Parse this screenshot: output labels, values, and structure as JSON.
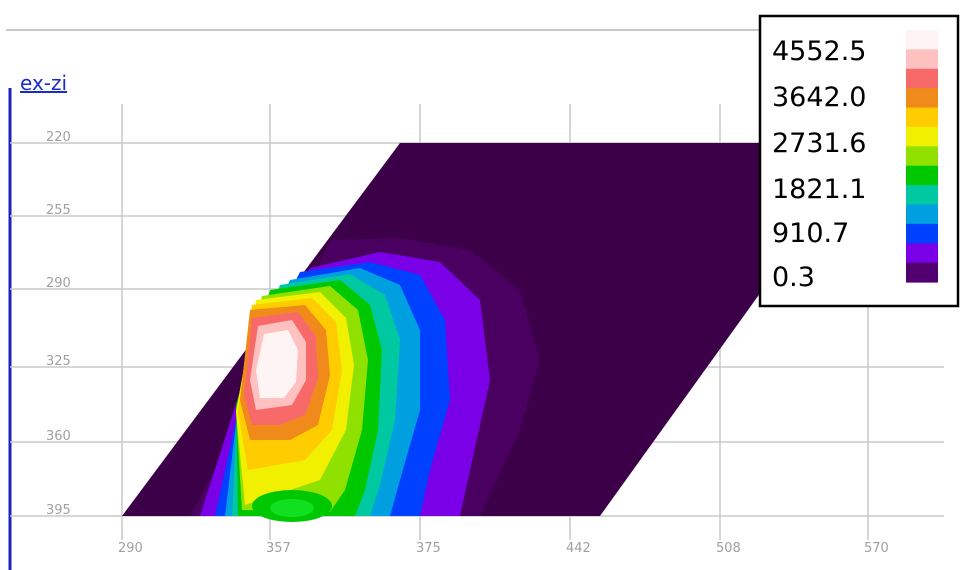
{
  "chart_data": {
    "type": "heatmap",
    "title": "",
    "ylabel": "ex-zi",
    "xlabel": "",
    "x_ticks": [
      "290",
      "357",
      "375",
      "442",
      "508",
      "570"
    ],
    "y_ticks": [
      "220",
      "255",
      "290",
      "325",
      "360",
      "395"
    ],
    "colorbar": {
      "labels": [
        "4552.5",
        "3642.0",
        "2731.6",
        "1821.1",
        "910.7",
        "0.3"
      ],
      "min": 0.3,
      "max": 4552.5,
      "colors": [
        "#fff4f4",
        "#ffc0c0",
        "#f86a6a",
        "#f08a1a",
        "#ffcc00",
        "#f0f000",
        "#90e000",
        "#00c800",
        "#00c8a0",
        "#00a0e0",
        "#0040ff",
        "#7a00e8",
        "#520070"
      ]
    },
    "grid": true,
    "notes": {
      "legend_placement": "top-right",
      "peak_region": "x approx 357, y approx 270-300"
    },
    "colors": {
      "background_field": "#3c0048",
      "grid": "#c8c8c8",
      "axis_line": "#2020c0",
      "legend_border": "#000000"
    }
  }
}
